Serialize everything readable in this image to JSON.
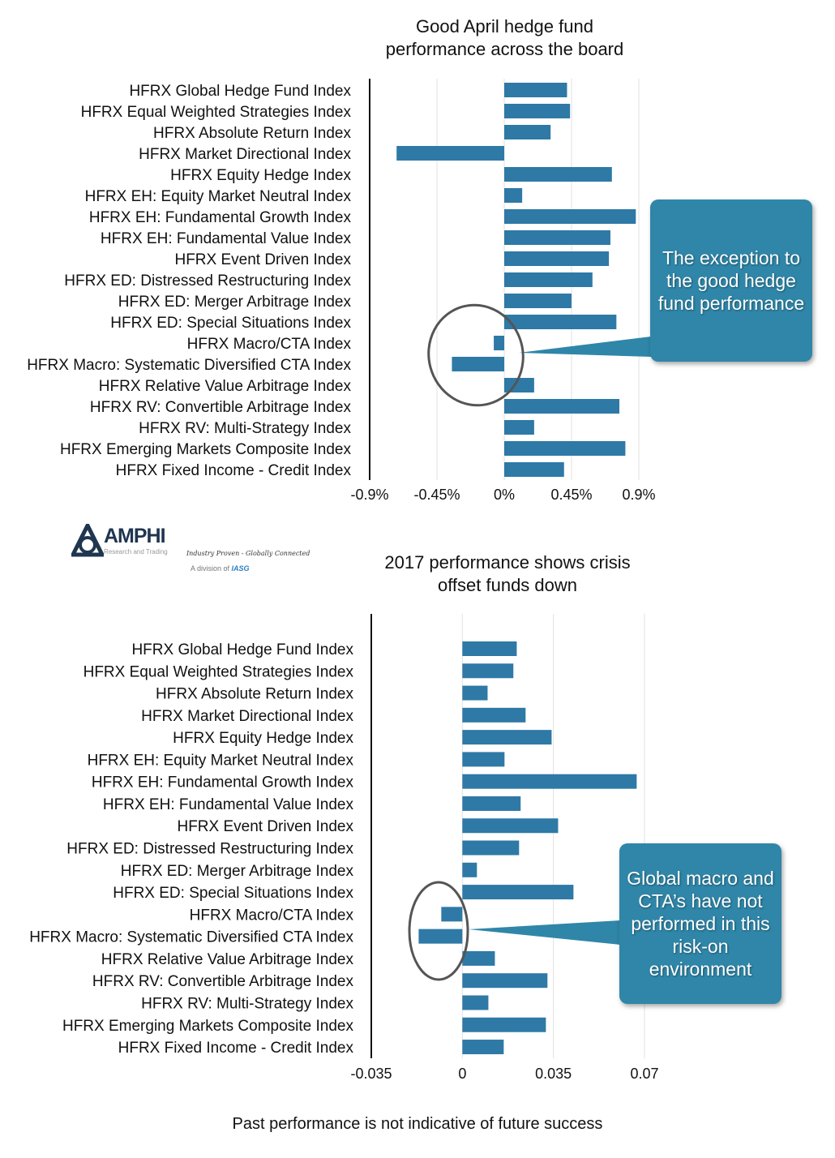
{
  "chart_data": [
    {
      "type": "bar",
      "orientation": "horizontal",
      "title": "Good April hedge fund performance across the board",
      "categories": [
        "HFRX Global Hedge Fund Index",
        "HFRX Equal Weighted Strategies Index",
        "HFRX Absolute Return Index",
        "HFRX Market Directional Index",
        "HFRX Equity Hedge Index",
        "HFRX EH: Equity Market Neutral Index",
        "HFRX EH: Fundamental Growth Index",
        "HFRX EH: Fundamental Value Index",
        "HFRX Event Driven Index",
        "HFRX ED: Distressed Restructuring Index",
        "HFRX ED: Merger Arbitrage Index",
        "HFRX ED: Special Situations Index",
        "HFRX Macro/CTA Index",
        "HFRX Macro: Systematic Diversified CTA Index",
        "HFRX Relative Value Arbitrage Index",
        "HFRX RV: Convertible Arbitrage Index",
        "HFRX RV: Multi-Strategy Index",
        "HFRX Emerging Markets Composite Index",
        "HFRX Fixed Income - Credit Index"
      ],
      "values": [
        0.42,
        0.44,
        0.31,
        -0.72,
        0.72,
        0.12,
        0.88,
        0.71,
        0.7,
        0.59,
        0.45,
        0.75,
        -0.07,
        -0.35,
        0.2,
        0.77,
        0.2,
        0.81,
        0.4
      ],
      "unit": "%",
      "xlim": [
        -0.9,
        0.9
      ],
      "ticks": [
        -0.9,
        -0.45,
        0,
        0.45,
        0.9
      ],
      "tick_labels": [
        "-0.9%",
        "-0.45%",
        "0%",
        "0.45%",
        "0.9%"
      ],
      "grid": true,
      "bar_color": "#2e79a6",
      "annotation": "The exception to the good hedge fund performance"
    },
    {
      "type": "bar",
      "orientation": "horizontal",
      "title": "2017 performance shows crisis offset funds down",
      "categories": [
        "HFRX Global Hedge Fund Index",
        "HFRX Equal Weighted Strategies Index",
        "HFRX Absolute Return Index",
        "HFRX Market Directional Index",
        "HFRX Equity Hedge Index",
        "HFRX EH: Equity Market Neutral Index",
        "HFRX EH: Fundamental Growth Index",
        "HFRX EH: Fundamental Value Index",
        "HFRX Event Driven Index",
        "HFRX ED: Distressed Restructuring Index",
        "HFRX ED: Merger Arbitrage Index",
        "HFRX ED: Special Situations Index",
        "HFRX Macro/CTA Index",
        "HFRX Macro: Systematic Diversified CTA Index",
        "HFRX Relative Value Arbitrage Index",
        "HFRX RV: Convertible Arbitrage Index",
        "HFRX RV: Multi-Strategy Index",
        "HFRX Emerging Markets Composite Index",
        "HFRX Fixed Income - Credit Index"
      ],
      "values": [
        0.0209,
        0.0196,
        0.0097,
        0.0243,
        0.0343,
        0.0162,
        0.067,
        0.0224,
        0.0368,
        0.0218,
        0.0056,
        0.0427,
        -0.0081,
        -0.0168,
        0.0125,
        0.0327,
        0.01,
        0.0321,
        0.0159
      ],
      "xlim": [
        -0.035,
        0.07
      ],
      "ticks": [
        -0.035,
        0,
        0.035,
        0.07
      ],
      "tick_labels": [
        "-0.035",
        "0",
        "0.035",
        "0.07"
      ],
      "grid": true,
      "bar_color": "#2e79a6",
      "annotation": "Global macro and CTA's have not performed in this risk-on environment"
    }
  ],
  "titles": {
    "chart1_line1": "Good April hedge fund",
    "chart1_line2": "performance across the board",
    "chart2_line1": "2017 performance shows crisis",
    "chart2_line2": "offset funds down"
  },
  "callouts": {
    "first": "The exception to the good hedge fund performance",
    "second": "Global macro and CTA’s have not performed in this risk-on environment"
  },
  "logo": {
    "name": "AMPHI",
    "subtitle": "Research and Trading",
    "tagline": "Industry Proven - Globally Connected",
    "division": "A division of",
    "parent": "IASG"
  },
  "footer": "Past performance is not indicative of future success"
}
